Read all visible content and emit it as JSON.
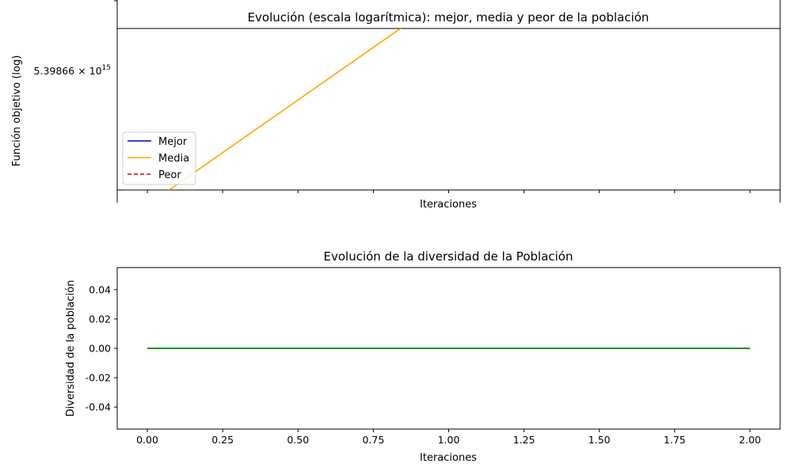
{
  "chart_data": [
    {
      "type": "line",
      "title": "Evolución (escala logarítmica): mejor, media y peor de la población",
      "xlabel": "Iteraciones",
      "ylabel": "Función objetivo (log)",
      "yscale": "log",
      "grid": false,
      "legend_position": "lower-left",
      "y_tick_labels": [
        {
          "mantissa": "5.39866",
          "exponent": "15"
        }
      ],
      "x_tick_labels_shown": false,
      "series": [
        {
          "name": "Mejor",
          "color": "#0000cc",
          "style": "solid",
          "visible_in_view": false
        },
        {
          "name": "Media",
          "color": "#ffa500",
          "style": "solid",
          "visible_in_view": true,
          "trend": "increasing"
        },
        {
          "name": "Peor",
          "color": "#dd0000",
          "style": "dashed",
          "visible_in_view": false
        }
      ]
    },
    {
      "type": "line",
      "title": "Evolución de la diversidad de la Población",
      "xlabel": "Iteraciones",
      "ylabel": "Diversidad de la población",
      "grid": false,
      "xlim": [
        -0.1,
        2.1
      ],
      "ylim": [
        -0.055,
        0.055
      ],
      "x_ticks": [
        "0.00",
        "0.25",
        "0.50",
        "0.75",
        "1.00",
        "1.25",
        "1.50",
        "1.75",
        "2.00"
      ],
      "y_ticks": [
        "0.04",
        "0.02",
        "0.00",
        "-0.02",
        "-0.04"
      ],
      "series": [
        {
          "color": "#008000",
          "x": [
            0,
            1,
            2
          ],
          "y": [
            0,
            0,
            0
          ]
        }
      ]
    }
  ]
}
